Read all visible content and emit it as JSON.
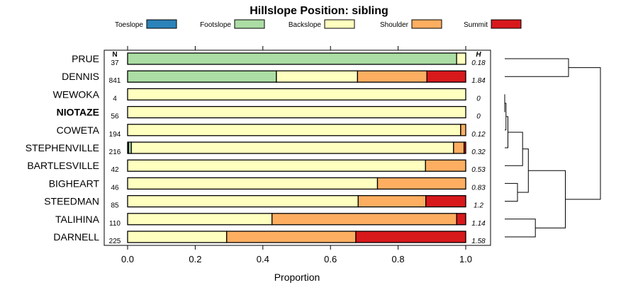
{
  "chart_data": {
    "type": "bar",
    "stacked": true,
    "orientation": "horizontal",
    "title": "Hillslope Position: sibling",
    "xlabel": "Proportion",
    "ylabel": "",
    "xlim": [
      0,
      1
    ],
    "xticks": [
      "0.0",
      "0.2",
      "0.4",
      "0.6",
      "0.8",
      "1.0"
    ],
    "legend_position": "top",
    "n_header": "N",
    "h_header": "H",
    "highlighted_category": "NIOTAZE",
    "series": [
      {
        "name": "Toeslope",
        "color": "#2b83ba"
      },
      {
        "name": "Footslope",
        "color": "#abdda4"
      },
      {
        "name": "Backslope",
        "color": "#ffffbf"
      },
      {
        "name": "Shoulder",
        "color": "#fdae61"
      },
      {
        "name": "Summit",
        "color": "#d7191c"
      }
    ],
    "rows": [
      {
        "label": "PRUE",
        "n": "37",
        "h": "0.18",
        "values": [
          0,
          0.973,
          0.027,
          0,
          0
        ]
      },
      {
        "label": "DENNIS",
        "n": "841",
        "h": "1.84",
        "values": [
          0,
          0.44,
          0.24,
          0.205,
          0.115
        ]
      },
      {
        "label": "WEWOKA",
        "n": "4",
        "h": "0",
        "values": [
          0,
          0,
          1.0,
          0,
          0
        ]
      },
      {
        "label": "NIOTAZE",
        "n": "56",
        "h": "0",
        "values": [
          0,
          0,
          1.0,
          0,
          0
        ]
      },
      {
        "label": "COWETA",
        "n": "194",
        "h": "0.12",
        "values": [
          0,
          0,
          0.985,
          0.015,
          0
        ]
      },
      {
        "label": "STEPHENVILLE",
        "n": "216",
        "h": "0.32",
        "values": [
          0.003,
          0.008,
          0.953,
          0.031,
          0.005
        ]
      },
      {
        "label": "BARTLESVILLE",
        "n": "42",
        "h": "0.53",
        "values": [
          0,
          0,
          0.881,
          0.119,
          0
        ]
      },
      {
        "label": "BIGHEART",
        "n": "46",
        "h": "0.83",
        "values": [
          0,
          0,
          0.739,
          0.261,
          0
        ]
      },
      {
        "label": "STEEDMAN",
        "n": "85",
        "h": "1.2",
        "values": [
          0,
          0,
          0.682,
          0.2,
          0.118
        ]
      },
      {
        "label": "TALIHINA",
        "n": "110",
        "h": "1.14",
        "values": [
          0,
          0,
          0.427,
          0.546,
          0.027
        ]
      },
      {
        "label": "DARNELL",
        "n": "225",
        "h": "1.58",
        "values": [
          0,
          0,
          0.293,
          0.382,
          0.325
        ]
      }
    ],
    "dendrogram": {
      "leaves": [
        "PRUE",
        "DENNIS",
        "WEWOKA",
        "NIOTAZE",
        "COWETA",
        "STEPHENVILLE",
        "BARTLESVILLE",
        "BIGHEART",
        "STEEDMAN",
        "TALIHINA",
        "DARNELL"
      ],
      "merges": [
        [
          -3,
          -4,
          0.0
        ],
        [
          -5,
          1,
          0.02
        ],
        [
          -6,
          2,
          0.05
        ],
        [
          -8,
          -9,
          0.2
        ],
        [
          -10,
          -11,
          0.48
        ],
        [
          -7,
          3,
          0.28
        ],
        [
          6,
          4,
          0.37
        ],
        [
          7,
          5,
          0.95
        ],
        [
          -1,
          -2,
          1.0
        ],
        [
          9,
          8,
          1.5
        ]
      ]
    }
  }
}
